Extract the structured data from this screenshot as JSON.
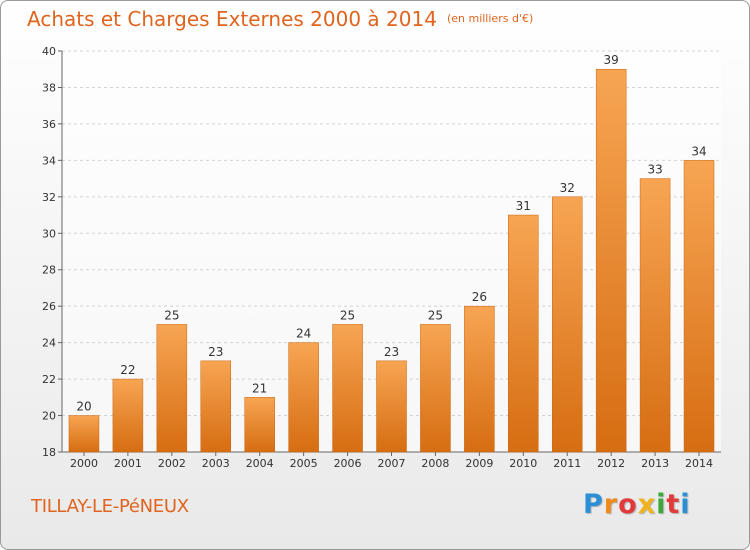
{
  "chart_data": {
    "type": "bar",
    "title": "Achats et Charges Externes 2000 à 2014",
    "subtitle": "(en milliers d'€)",
    "categories": [
      "2000",
      "2001",
      "2002",
      "2003",
      "2004",
      "2005",
      "2006",
      "2007",
      "2008",
      "2009",
      "2010",
      "2011",
      "2012",
      "2013",
      "2014"
    ],
    "values": [
      20,
      22,
      25,
      23,
      21,
      24,
      25,
      23,
      25,
      26,
      31,
      32,
      39,
      33,
      34
    ],
    "ylim": [
      18,
      40
    ],
    "yticks": [
      18,
      20,
      22,
      24,
      26,
      28,
      30,
      32,
      34,
      36,
      38,
      40
    ],
    "grid": true,
    "bar_color": "#f0922e",
    "xlabel": "",
    "ylabel": ""
  },
  "footer": {
    "commune": "TILLAY-LE-PéNEUX",
    "logo": "Proxiti"
  }
}
